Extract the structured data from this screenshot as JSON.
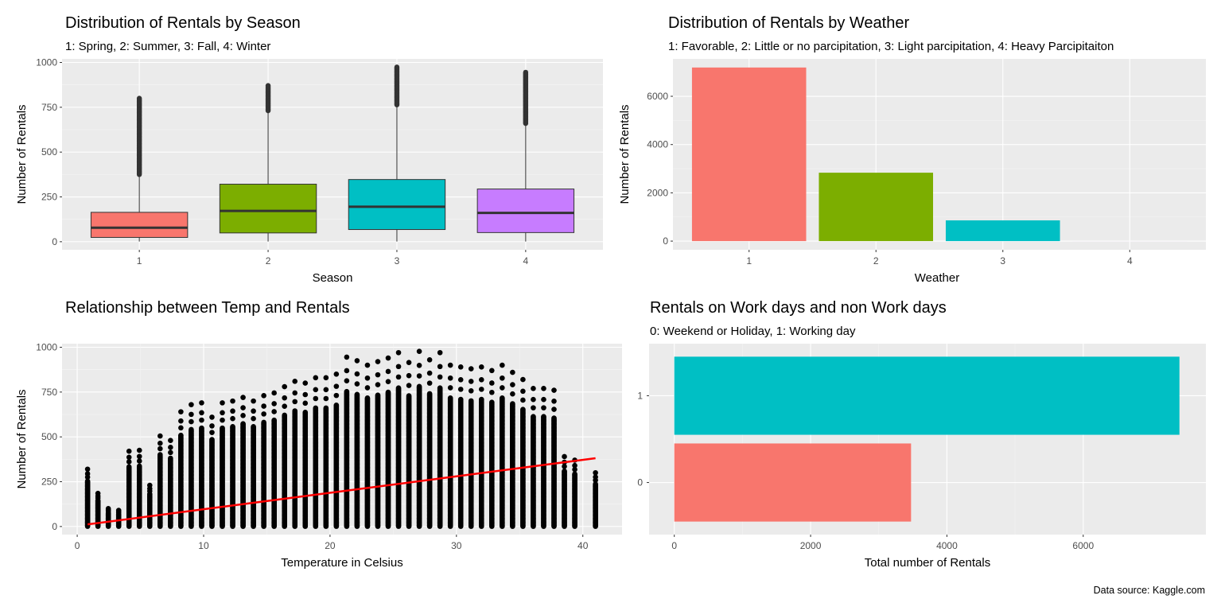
{
  "caption": "Data source: Kaggle.com",
  "chart_data": [
    {
      "type": "box",
      "title": "Distribution of Rentals by Season",
      "subtitle": "1: Spring, 2: Summer, 3: Fall, 4: Winter",
      "xlabel": "Season",
      "ylabel": "Number of Rentals",
      "categories": [
        "1",
        "2",
        "3",
        "4"
      ],
      "ylim": [
        -45,
        1020
      ],
      "yticks": [
        0,
        250,
        500,
        750,
        1000
      ],
      "colors": [
        "#F8766D",
        "#7CAE00",
        "#00BFC4",
        "#C77CFF"
      ],
      "boxes": [
        {
          "lower": 1,
          "q1": 24,
          "median": 78,
          "q3": 164,
          "upper": 374,
          "outlier_min": 375,
          "outlier_max": 801
        },
        {
          "lower": 1,
          "q1": 49,
          "median": 172,
          "q3": 321,
          "upper": 730,
          "outlier_min": 731,
          "outlier_max": 873
        },
        {
          "lower": 1,
          "q1": 68,
          "median": 195,
          "q3": 347,
          "upper": 763,
          "outlier_min": 764,
          "outlier_max": 977
        },
        {
          "lower": 1,
          "q1": 51,
          "median": 161,
          "q3": 294,
          "upper": 659,
          "outlier_min": 660,
          "outlier_max": 948
        }
      ]
    },
    {
      "type": "bar",
      "title": "Distribution of Rentals by Weather",
      "subtitle": "1: Favorable, 2: Little or no parcipitation, 3: Light parcipitation, 4: Heavy Parcipitaiton",
      "xlabel": "Weather",
      "ylabel": "Number of Rentals",
      "categories": [
        "1",
        "2",
        "3",
        "4"
      ],
      "values": [
        7192,
        2834,
        859,
        1
      ],
      "ylim": [
        -360,
        7550
      ],
      "yticks": [
        0,
        2000,
        4000,
        6000
      ],
      "colors": [
        "#F8766D",
        "#7CAE00",
        "#00BFC4",
        "#C77CFF"
      ]
    },
    {
      "type": "scatter",
      "title": "Relationship between Temp and Rentals",
      "xlabel": "Temperature in Celsius",
      "ylabel": "Number of Rentals",
      "xlim": [
        -1.2,
        43.1
      ],
      "ylim": [
        -45,
        1020
      ],
      "xticks": [
        0,
        10,
        20,
        30,
        40
      ],
      "yticks": [
        0,
        250,
        500,
        750,
        1000
      ],
      "point_color": "#000000",
      "trend_color": "#FF0000",
      "trend_line": {
        "x": [
          0.82,
          41.0
        ],
        "y": [
          12,
          381
        ]
      },
      "temperature_columns": [
        {
          "x": 0.82,
          "max": 320
        },
        {
          "x": 1.64,
          "max": 185
        },
        {
          "x": 2.46,
          "max": 100
        },
        {
          "x": 3.28,
          "max": 90
        },
        {
          "x": 4.1,
          "max": 420
        },
        {
          "x": 4.92,
          "max": 425
        },
        {
          "x": 5.74,
          "max": 230
        },
        {
          "x": 6.56,
          "max": 505
        },
        {
          "x": 7.38,
          "max": 480
        },
        {
          "x": 8.2,
          "max": 640
        },
        {
          "x": 9.02,
          "max": 680
        },
        {
          "x": 9.84,
          "max": 690
        },
        {
          "x": 10.66,
          "max": 610
        },
        {
          "x": 11.48,
          "max": 690
        },
        {
          "x": 12.3,
          "max": 700
        },
        {
          "x": 13.12,
          "max": 720
        },
        {
          "x": 13.94,
          "max": 700
        },
        {
          "x": 14.76,
          "max": 730
        },
        {
          "x": 15.58,
          "max": 745
        },
        {
          "x": 16.4,
          "max": 780
        },
        {
          "x": 17.22,
          "max": 810
        },
        {
          "x": 18.04,
          "max": 800
        },
        {
          "x": 18.86,
          "max": 830
        },
        {
          "x": 19.68,
          "max": 830
        },
        {
          "x": 20.5,
          "max": 850
        },
        {
          "x": 21.32,
          "max": 945
        },
        {
          "x": 22.14,
          "max": 925
        },
        {
          "x": 22.96,
          "max": 900
        },
        {
          "x": 23.78,
          "max": 920
        },
        {
          "x": 24.6,
          "max": 940
        },
        {
          "x": 25.42,
          "max": 970
        },
        {
          "x": 26.24,
          "max": 915
        },
        {
          "x": 27.06,
          "max": 977
        },
        {
          "x": 27.88,
          "max": 930
        },
        {
          "x": 28.7,
          "max": 970
        },
        {
          "x": 29.52,
          "max": 900
        },
        {
          "x": 30.34,
          "max": 890
        },
        {
          "x": 31.16,
          "max": 880
        },
        {
          "x": 31.98,
          "max": 890
        },
        {
          "x": 32.8,
          "max": 870
        },
        {
          "x": 33.62,
          "max": 900
        },
        {
          "x": 34.44,
          "max": 860
        },
        {
          "x": 35.26,
          "max": 820
        },
        {
          "x": 36.08,
          "max": 770
        },
        {
          "x": 36.9,
          "max": 770
        },
        {
          "x": 37.72,
          "max": 760
        },
        {
          "x": 38.54,
          "max": 390
        },
        {
          "x": 39.36,
          "max": 370
        },
        {
          "x": 41.0,
          "max": 300
        }
      ]
    },
    {
      "type": "bar",
      "orientation": "horizontal",
      "title": "Rentals on Work days and non Work days",
      "subtitle": "0: Weekend or Holiday, 1: Working day",
      "xlabel": "Total number of Rentals",
      "ylabel": "",
      "categories": [
        "0",
        "1"
      ],
      "values": [
        3474,
        7412
      ],
      "xlim": [
        -370,
        7800
      ],
      "xticks": [
        0,
        2000,
        4000,
        6000
      ],
      "colors": [
        "#F8766D",
        "#00BFC4"
      ]
    }
  ]
}
